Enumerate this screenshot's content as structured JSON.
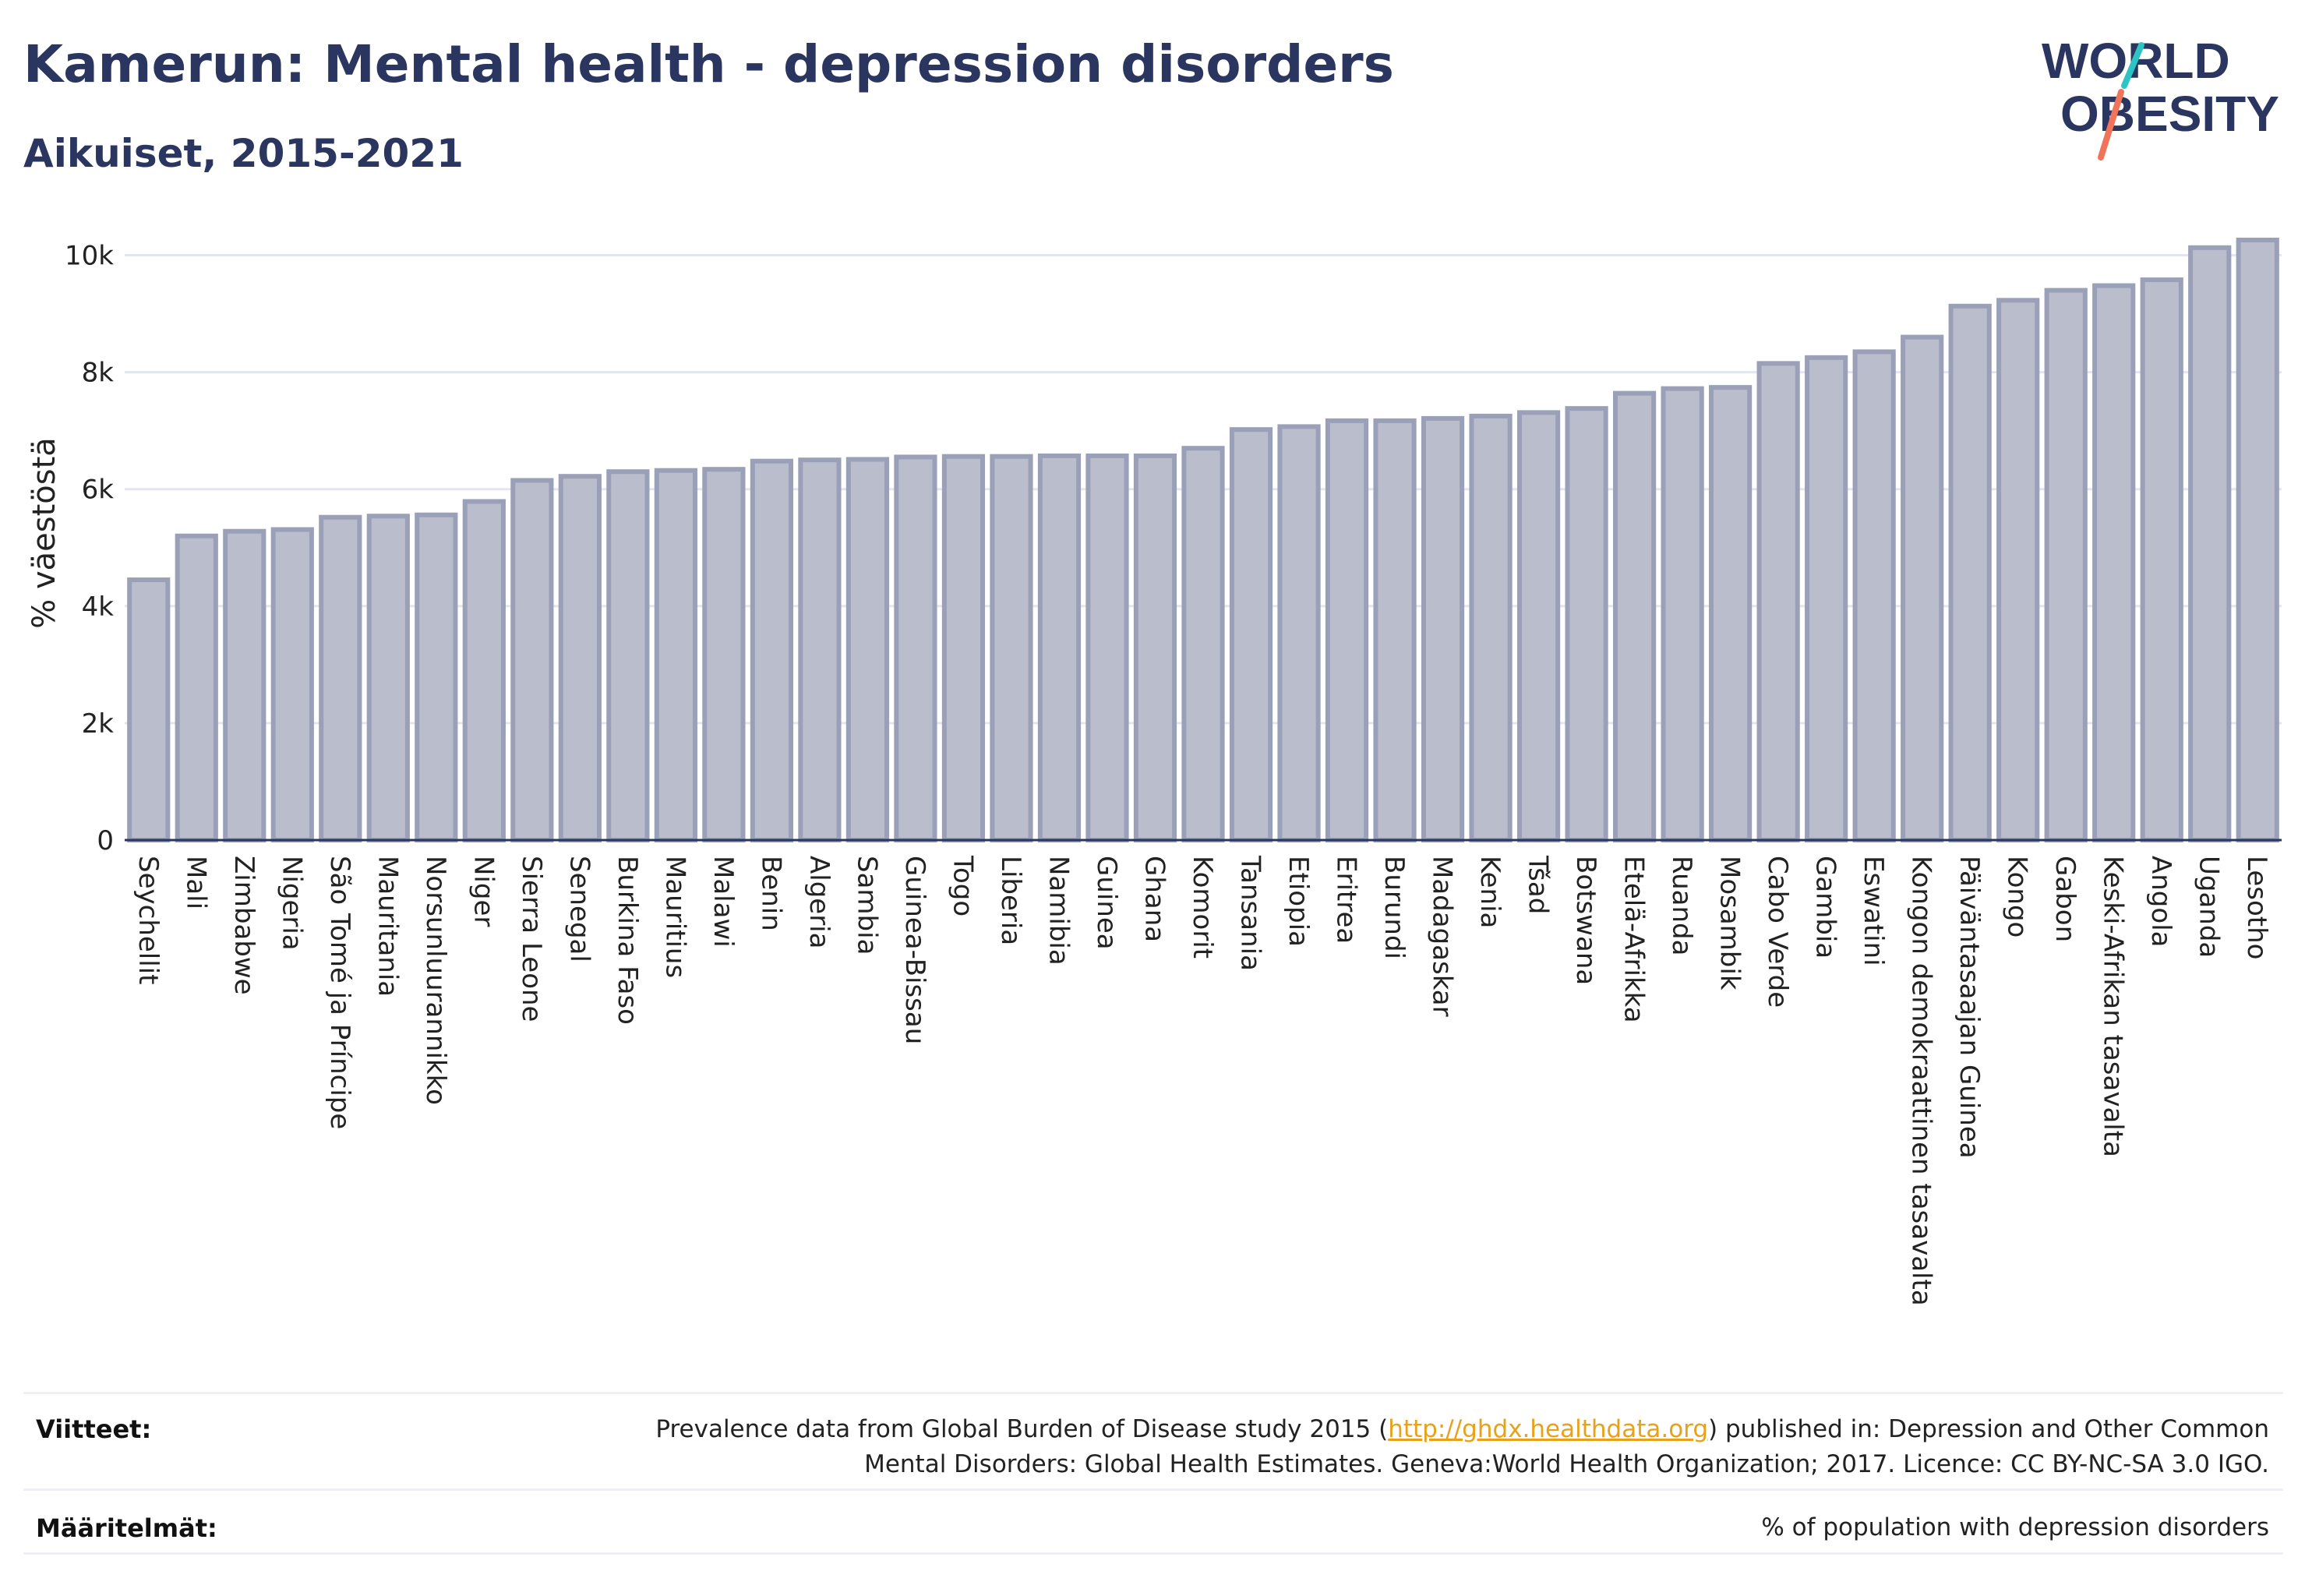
{
  "title": "Kamerun: Mental health - depression disorders",
  "subtitle": "Aikuiset, 2015-2021",
  "logo": {
    "line1": "WORLD",
    "line2": "OBESITY",
    "colors": {
      "text": "#2b3660",
      "slash_teal": "#2ec4c4",
      "slash_coral": "#f0735a"
    }
  },
  "footer": {
    "references_label": "Viitteet:",
    "references_text_before": "Prevalence data from Global Burden of Disease study 2015 (",
    "references_link": "http://ghdx.healthdata.org",
    "references_text_after": ") published in: Depression and Other Common",
    "references_line2": "Mental Disorders: Global Health Estimates. Geneva:World Health Organization; 2017. Licence: CC BY-NC-SA 3.0 IGO.",
    "definitions_label": "Määritelmät:",
    "definitions_text": "% of population with depression disorders"
  },
  "chart_data": {
    "type": "bar",
    "ylabel": "% väestöstä",
    "ylim": [
      0,
      10500
    ],
    "yticks": [
      0,
      2000,
      4000,
      6000,
      8000,
      10000
    ],
    "ytick_labels": [
      "0",
      "2k",
      "4k",
      "6k",
      "8k",
      "10k"
    ],
    "grid": true,
    "bar_color": "#b9bdcc",
    "bar_edge_color": "#9aa0b8",
    "categories": [
      "Seychellit",
      "Mali",
      "Zimbabwe",
      "Nigeria",
      "São Tomé ja Príncipe",
      "Mauritania",
      "Norsunluurannikko",
      "Niger",
      "Sierra Leone",
      "Senegal",
      "Burkina Faso",
      "Mauritius",
      "Malawi",
      "Benin",
      "Algeria",
      "Sambia",
      "Guinea-Bissau",
      "Togo",
      "Liberia",
      "Namibia",
      "Guinea",
      "Ghana",
      "Komorit",
      "Tansania",
      "Etiopia",
      "Eritrea",
      "Burundi",
      "Madagaskar",
      "Kenia",
      "Tšad",
      "Botswana",
      "Etelä-Afrikka",
      "Ruanda",
      "Mosambik",
      "Cabo Verde",
      "Gambia",
      "Eswatini",
      "Kongon demokraattinen tasavalta",
      "Päiväntasaajan Guinea",
      "Kongo",
      "Gabon",
      "Keski-Afrikan tasavalta",
      "Angola",
      "Uganda",
      "Lesotho"
    ],
    "values": [
      4450,
      5200,
      5280,
      5310,
      5520,
      5540,
      5560,
      5790,
      6150,
      6220,
      6300,
      6320,
      6340,
      6480,
      6500,
      6510,
      6550,
      6560,
      6560,
      6570,
      6570,
      6570,
      6700,
      7020,
      7070,
      7170,
      7170,
      7210,
      7250,
      7310,
      7380,
      7640,
      7720,
      7740,
      8150,
      8250,
      8350,
      8600,
      9130,
      9230,
      9400,
      9480,
      9580,
      10130,
      10260
    ]
  }
}
